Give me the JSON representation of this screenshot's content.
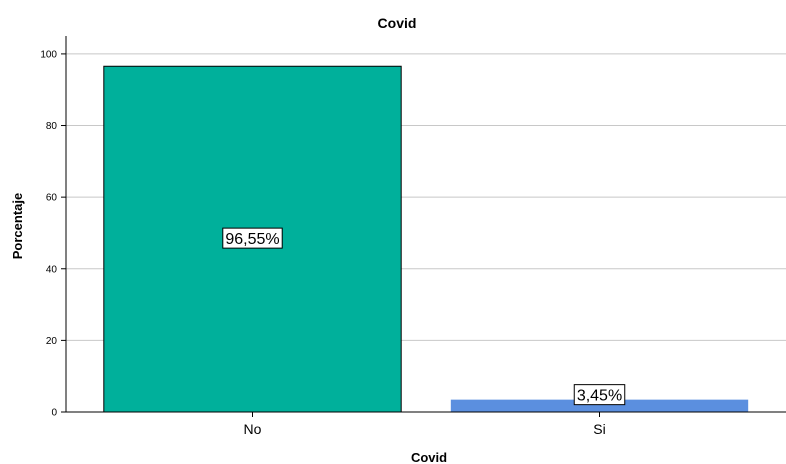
{
  "chart_data": {
    "type": "bar",
    "title": "Covid",
    "xlabel": "Covid",
    "ylabel": "Porcentaje",
    "categories": [
      "No",
      "Si"
    ],
    "values": [
      96.55,
      3.45
    ],
    "data_labels": [
      "96,55%",
      "3,45%"
    ],
    "colors": [
      "#00b09b",
      "#5b8fdf"
    ],
    "ylim": [
      0,
      105
    ],
    "yticks": [
      0,
      20,
      40,
      60,
      80,
      100
    ],
    "grid": true,
    "legend": "none"
  }
}
